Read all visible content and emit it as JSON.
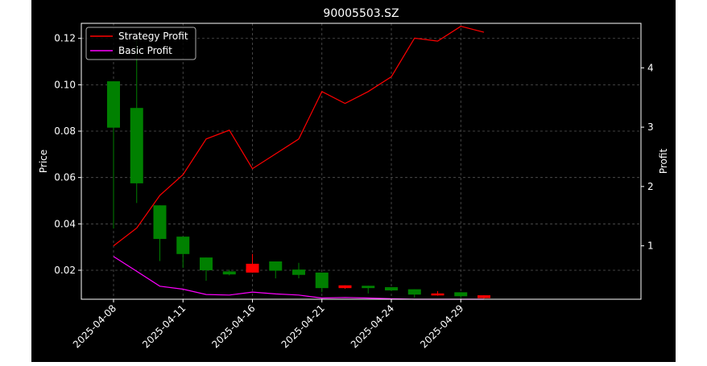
{
  "chart_data": {
    "type": "candlestick+line",
    "title": "90005503.SZ",
    "xlabel": "",
    "ylabel_left": "Price",
    "ylabel_right": "Profit",
    "x_tick_labels": [
      "2025-04-08",
      "2025-04-11",
      "2025-04-16",
      "2025-04-21",
      "2025-04-24",
      "2025-04-29"
    ],
    "ylim_left": [
      0.0075,
      0.1265
    ],
    "yticks_left": [
      "0.02",
      "0.04",
      "0.06",
      "0.08",
      "0.10",
      "0.12"
    ],
    "ylim_right": [
      0.1,
      4.75
    ],
    "yticks_right": [
      "1",
      "2",
      "3",
      "4"
    ],
    "grid": true,
    "legend_position": "top-left",
    "colors": {
      "background": "#000000",
      "text": "#ffffff",
      "grid": "#555555",
      "candle_down": "#008000",
      "candle_up": "#ff0000",
      "strategy_line": "#ff0000",
      "basic_line": "#ff00ff"
    },
    "candles": [
      {
        "date": "2025-04-08",
        "open": 0.1015,
        "close": 0.0815,
        "high": 0.1015,
        "low": 0.038
      },
      {
        "date": "2025-04-09",
        "open": 0.09,
        "close": 0.0575,
        "high": 0.122,
        "low": 0.049
      },
      {
        "date": "2025-04-10",
        "open": 0.048,
        "close": 0.0335,
        "high": 0.048,
        "low": 0.024
      },
      {
        "date": "2025-04-11",
        "open": 0.0345,
        "close": 0.027,
        "high": 0.0345,
        "low": 0.021
      },
      {
        "date": "2025-04-14",
        "open": 0.0255,
        "close": 0.02,
        "high": 0.0255,
        "low": 0.0155
      },
      {
        "date": "2025-04-15",
        "open": 0.0195,
        "close": 0.0182,
        "high": 0.0202,
        "low": 0.0178
      },
      {
        "date": "2025-04-16",
        "open": 0.019,
        "close": 0.0228,
        "high": 0.027,
        "low": 0.019
      },
      {
        "date": "2025-04-17",
        "open": 0.0238,
        "close": 0.0198,
        "high": 0.0238,
        "low": 0.0165
      },
      {
        "date": "2025-04-18",
        "open": 0.0203,
        "close": 0.018,
        "high": 0.0232,
        "low": 0.0165
      },
      {
        "date": "2025-04-21",
        "open": 0.019,
        "close": 0.0123,
        "high": 0.019,
        "low": 0.0105
      },
      {
        "date": "2025-04-22",
        "open": 0.0123,
        "close": 0.0135,
        "high": 0.0135,
        "low": 0.012
      },
      {
        "date": "2025-04-23",
        "open": 0.0133,
        "close": 0.0123,
        "high": 0.0133,
        "low": 0.01
      },
      {
        "date": "2025-04-24",
        "open": 0.0127,
        "close": 0.0113,
        "high": 0.0127,
        "low": 0.011
      },
      {
        "date": "2025-04-25",
        "open": 0.0118,
        "close": 0.0095,
        "high": 0.0118,
        "low": 0.0082
      },
      {
        "date": "2025-04-28",
        "open": 0.0093,
        "close": 0.01,
        "high": 0.011,
        "low": 0.009
      },
      {
        "date": "2025-04-29",
        "open": 0.0105,
        "close": 0.0088,
        "high": 0.0105,
        "low": 0.008
      },
      {
        "date": "2025-04-30",
        "open": 0.008,
        "close": 0.0092,
        "high": 0.0092,
        "low": 0.0078
      }
    ],
    "series": [
      {
        "name": "Strategy Profit",
        "axis": "right",
        "values": [
          1.0,
          1.3,
          1.85,
          2.2,
          2.8,
          2.95,
          2.3,
          2.55,
          2.8,
          3.6,
          3.4,
          3.6,
          3.85,
          4.5,
          4.45,
          4.7,
          4.6
        ]
      },
      {
        "name": "Basic Profit",
        "axis": "right",
        "values": [
          0.82,
          0.57,
          0.32,
          0.27,
          0.18,
          0.17,
          0.22,
          0.19,
          0.17,
          0.12,
          0.13,
          0.12,
          0.11,
          0.1,
          0.1,
          0.1,
          0.1
        ]
      }
    ]
  }
}
